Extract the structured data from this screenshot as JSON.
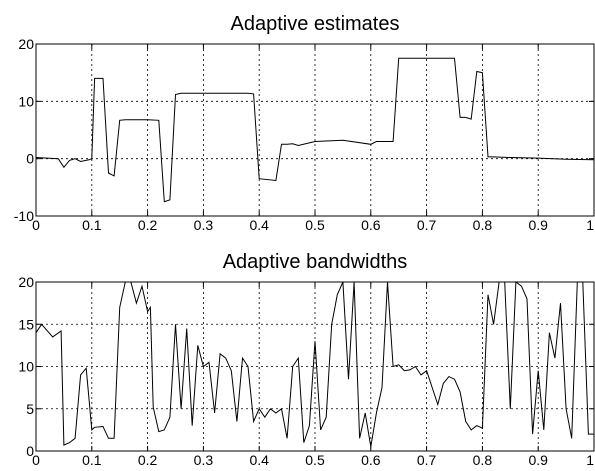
{
  "chart_data": [
    {
      "type": "line",
      "title": "Adaptive estimates",
      "xlim": [
        0,
        1
      ],
      "ylim": [
        -10,
        20
      ],
      "xticks": [
        "0",
        "0.1",
        "0.2",
        "0.3",
        "0.4",
        "0.5",
        "0.6",
        "0.7",
        "0.8",
        "0.9",
        "1"
      ],
      "yticks": [
        "-10",
        "0",
        "10",
        "20"
      ],
      "grid": true,
      "series": [
        {
          "x": [
            0,
            0.04,
            0.05,
            0.06,
            0.07,
            0.08,
            0.095,
            0.1,
            0.105,
            0.12,
            0.13,
            0.14,
            0.15,
            0.16,
            0.2,
            0.22,
            0.23,
            0.24,
            0.25,
            0.26,
            0.3,
            0.38,
            0.39,
            0.4,
            0.43,
            0.44,
            0.45,
            0.46,
            0.47,
            0.5,
            0.55,
            0.6,
            0.61,
            0.62,
            0.63,
            0.64,
            0.65,
            0.7,
            0.75,
            0.76,
            0.77,
            0.78,
            0.79,
            0.8,
            0.81,
            0.82,
            0.85,
            0.9,
            0.95,
            1.0
          ],
          "y": [
            0.2,
            0.0,
            -1.5,
            -0.3,
            0.0,
            -0.5,
            -0.2,
            0.0,
            14.0,
            14.0,
            -2.5,
            -3.0,
            6.7,
            6.8,
            6.8,
            6.7,
            -7.5,
            -7.2,
            11.2,
            11.4,
            11.4,
            11.4,
            11.3,
            -3.5,
            -3.8,
            2.5,
            2.5,
            2.6,
            2.3,
            3.0,
            3.2,
            2.5,
            3.0,
            3.0,
            3.0,
            3.0,
            17.5,
            17.5,
            17.5,
            7.2,
            7.2,
            6.9,
            15.2,
            15.0,
            0.3,
            0.3,
            0.2,
            0.1,
            -0.1,
            -0.2
          ]
        }
      ]
    },
    {
      "type": "line",
      "title": "Adaptive bandwidths",
      "xlim": [
        0,
        1
      ],
      "ylim": [
        0,
        20
      ],
      "xticks": [
        "0",
        "0.1",
        "0.2",
        "0.3",
        "0.4",
        "0.5",
        "0.6",
        "0.7",
        "0.8",
        "0.9",
        "1"
      ],
      "yticks": [
        "0",
        "5",
        "10",
        "15",
        "20"
      ],
      "grid": true,
      "series": [
        {
          "x": [
            0.0,
            0.01,
            0.03,
            0.045,
            0.05,
            0.06,
            0.07,
            0.08,
            0.09,
            0.1,
            0.105,
            0.12,
            0.13,
            0.14,
            0.15,
            0.16,
            0.17,
            0.18,
            0.19,
            0.2,
            0.205,
            0.21,
            0.22,
            0.23,
            0.24,
            0.25,
            0.26,
            0.27,
            0.28,
            0.29,
            0.3,
            0.31,
            0.32,
            0.33,
            0.34,
            0.35,
            0.36,
            0.37,
            0.38,
            0.39,
            0.4,
            0.41,
            0.42,
            0.43,
            0.44,
            0.45,
            0.46,
            0.47,
            0.48,
            0.49,
            0.5,
            0.51,
            0.52,
            0.53,
            0.54,
            0.55,
            0.56,
            0.57,
            0.58,
            0.59,
            0.6,
            0.61,
            0.62,
            0.63,
            0.64,
            0.65,
            0.66,
            0.67,
            0.68,
            0.69,
            0.7,
            0.71,
            0.72,
            0.73,
            0.74,
            0.75,
            0.76,
            0.77,
            0.78,
            0.79,
            0.8,
            0.81,
            0.82,
            0.83,
            0.84,
            0.85,
            0.86,
            0.87,
            0.88,
            0.89,
            0.9,
            0.91,
            0.92,
            0.93,
            0.94,
            0.95,
            0.96,
            0.97,
            0.98,
            0.99,
            1.0
          ],
          "y": [
            14.0,
            15.0,
            13.5,
            14.2,
            0.7,
            1.0,
            1.5,
            9.0,
            9.8,
            2.5,
            2.8,
            2.9,
            1.5,
            1.5,
            17.0,
            20.0,
            20.0,
            17.5,
            19.5,
            16.5,
            17.0,
            5.2,
            2.3,
            2.5,
            4.0,
            15.0,
            5.0,
            14.5,
            3.0,
            12.5,
            10.0,
            10.5,
            4.5,
            11.5,
            11.0,
            9.5,
            3.5,
            11.0,
            10.0,
            3.5,
            5.0,
            4.0,
            5.0,
            4.5,
            5.0,
            1.5,
            10.0,
            11.0,
            1.0,
            3.0,
            13.0,
            2.5,
            4.0,
            15.0,
            18.5,
            20.0,
            8.5,
            20.0,
            1.5,
            4.5,
            0.5,
            4.5,
            7.5,
            20.0,
            10.0,
            10.2,
            9.5,
            9.6,
            10.0,
            9.0,
            9.5,
            7.5,
            5.5,
            8.0,
            8.8,
            8.5,
            7.0,
            3.5,
            2.5,
            3.0,
            2.7,
            18.5,
            15.0,
            20.0,
            20.0,
            5.0,
            20.0,
            19.5,
            18.0,
            2.0,
            9.5,
            2.5,
            14.0,
            11.0,
            17.5,
            5.0,
            1.5,
            20.0,
            20.0,
            2.0,
            2.0
          ]
        }
      ]
    }
  ]
}
